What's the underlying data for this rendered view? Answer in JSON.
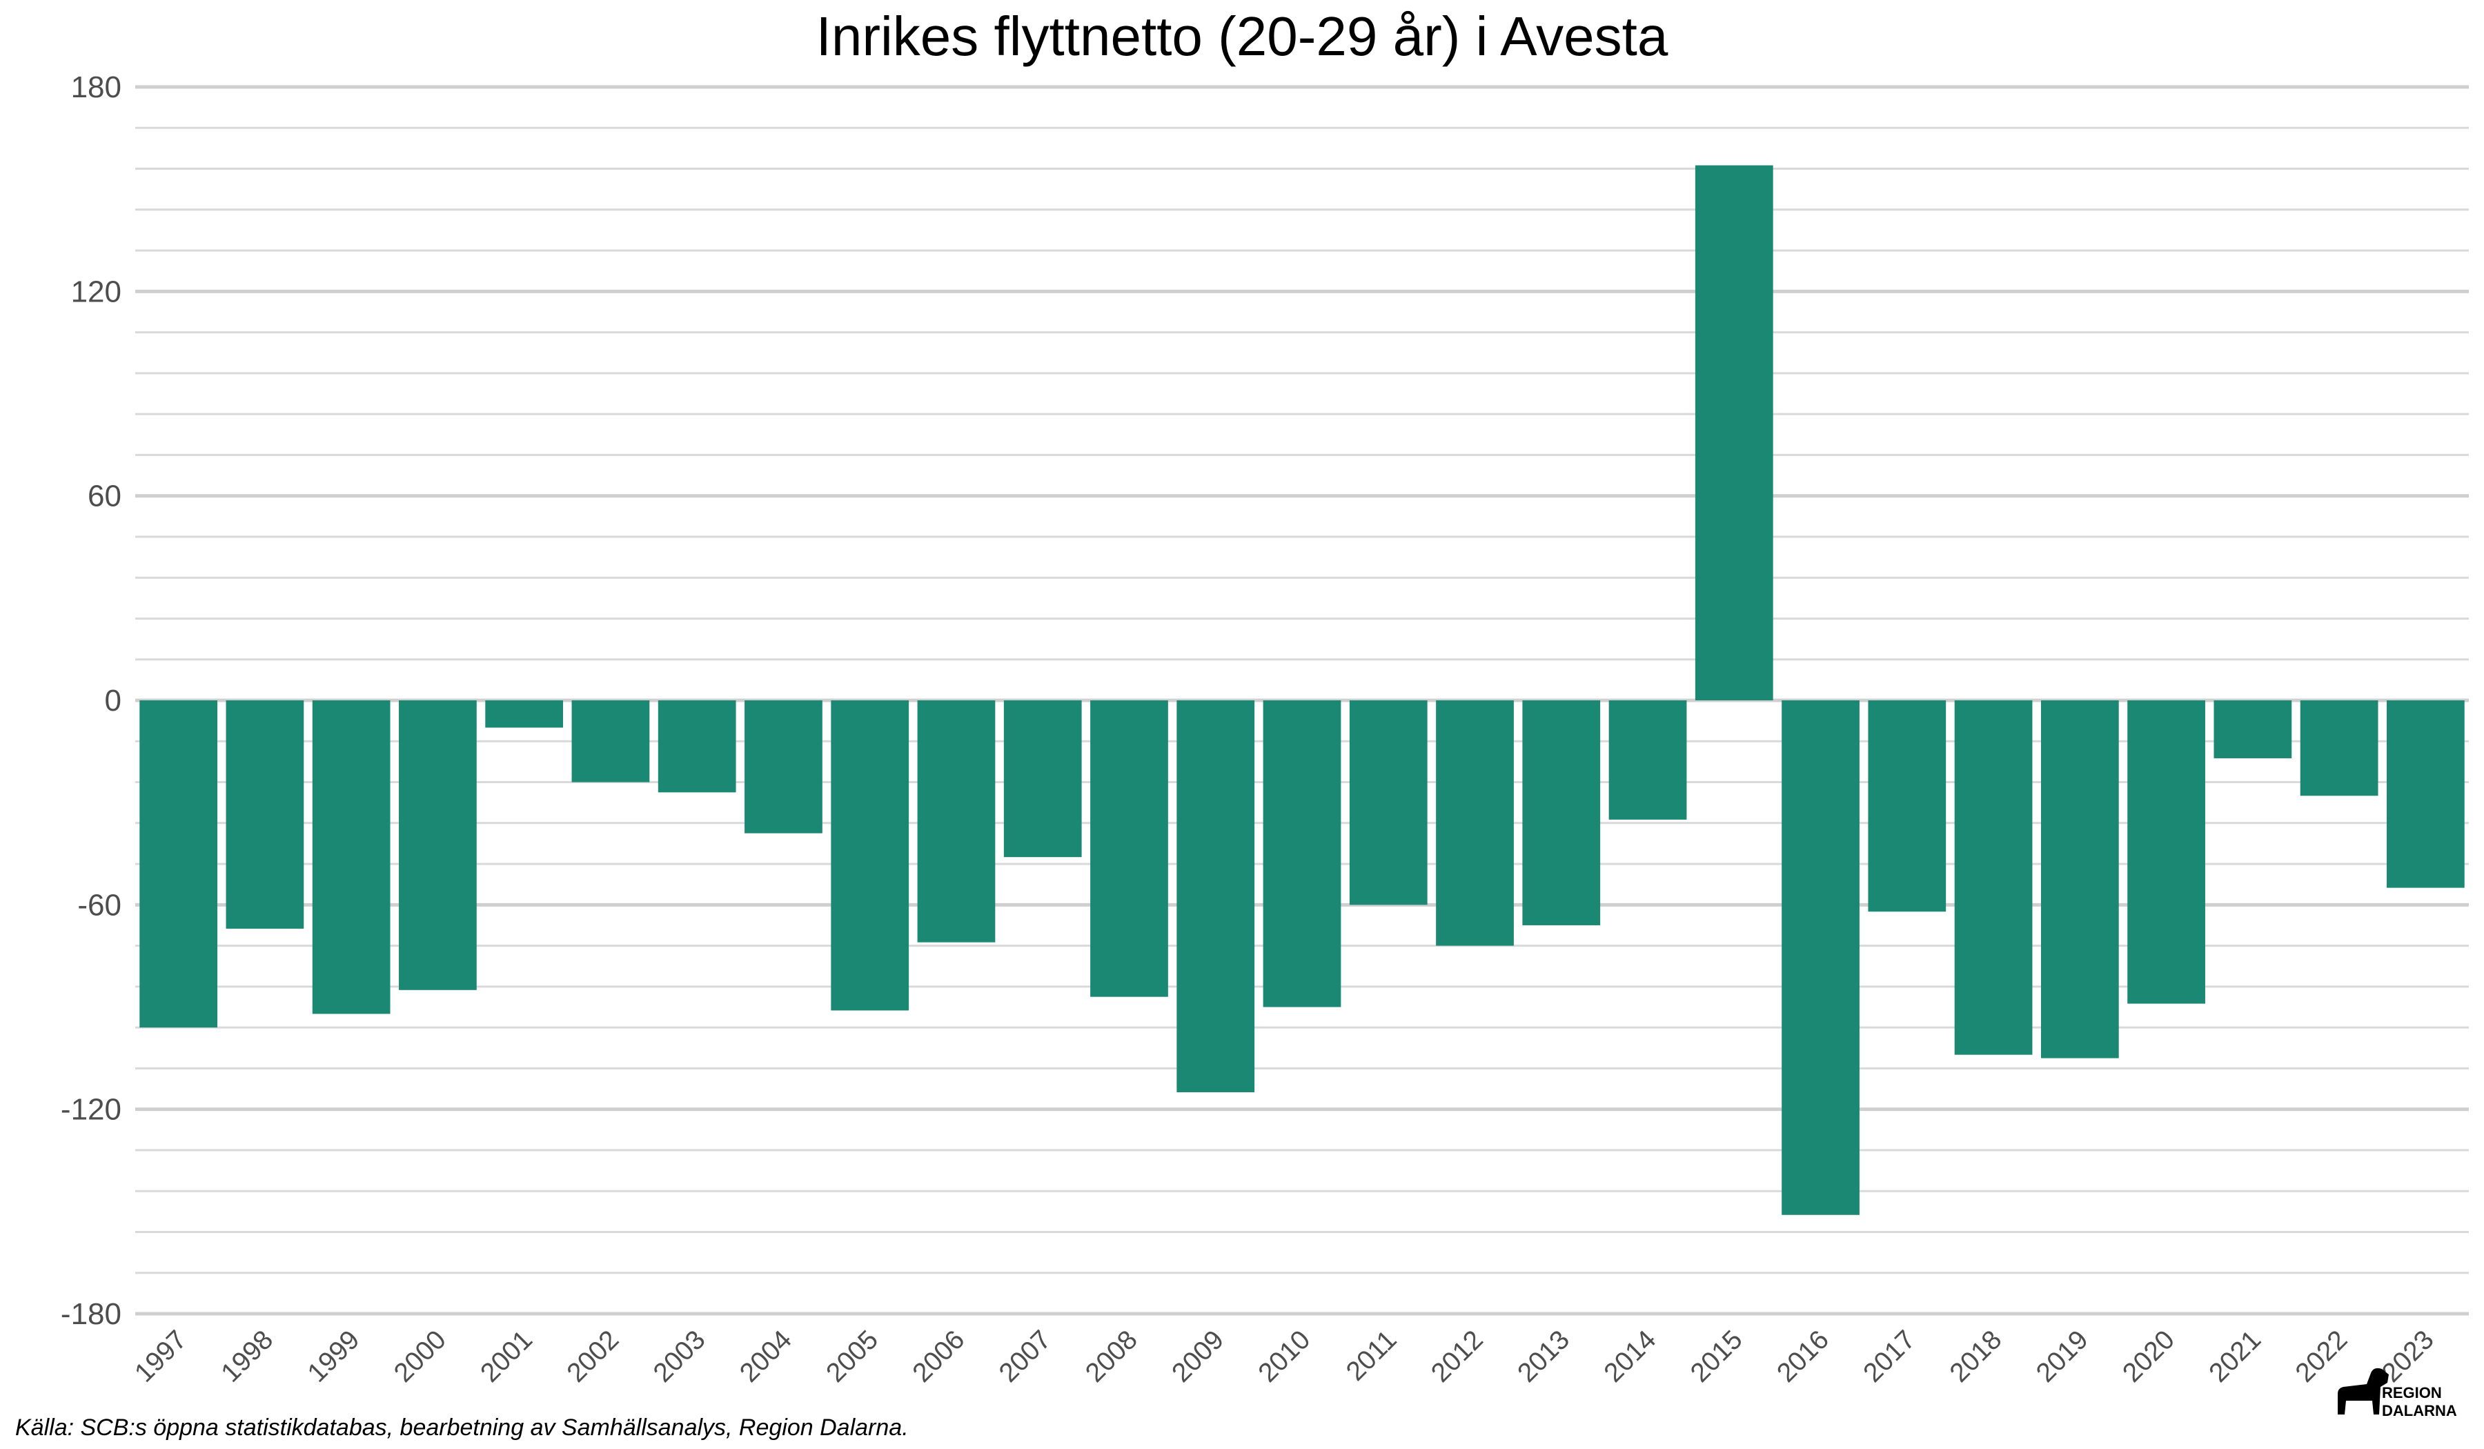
{
  "chart_data": {
    "type": "bar",
    "title": "Inrikes flyttnetto (20-29 år) i Avesta",
    "xlabel": "",
    "ylabel": "",
    "categories": [
      "1997",
      "1998",
      "1999",
      "2000",
      "2001",
      "2002",
      "2003",
      "2004",
      "2005",
      "2006",
      "2007",
      "2008",
      "2009",
      "2010",
      "2011",
      "2012",
      "2013",
      "2014",
      "2015",
      "2016",
      "2017",
      "2018",
      "2019",
      "2020",
      "2021",
      "2022",
      "2023"
    ],
    "values": [
      -96,
      -67,
      -92,
      -85,
      -8,
      -24,
      -27,
      -39,
      -91,
      -71,
      -46,
      -87,
      -115,
      -90,
      -60,
      -72,
      -66,
      -35,
      157,
      -151,
      -62,
      -104,
      -105,
      -89,
      -17,
      -28,
      -55
    ],
    "ylim": [
      -180,
      180
    ],
    "yticks": [
      "-180",
      "-120",
      "-60",
      "0",
      "60",
      "120",
      "180"
    ],
    "grid": true,
    "legend": "none",
    "bar_color": "#1a8872",
    "caption": "Källa: SCB:s öppna statistikdatabas, bearbetning av Samhällsanalys, Region Dalarna."
  },
  "logo": {
    "line1": "REGION",
    "line2": "DALARNA",
    "icon": "dala-horse-icon"
  }
}
